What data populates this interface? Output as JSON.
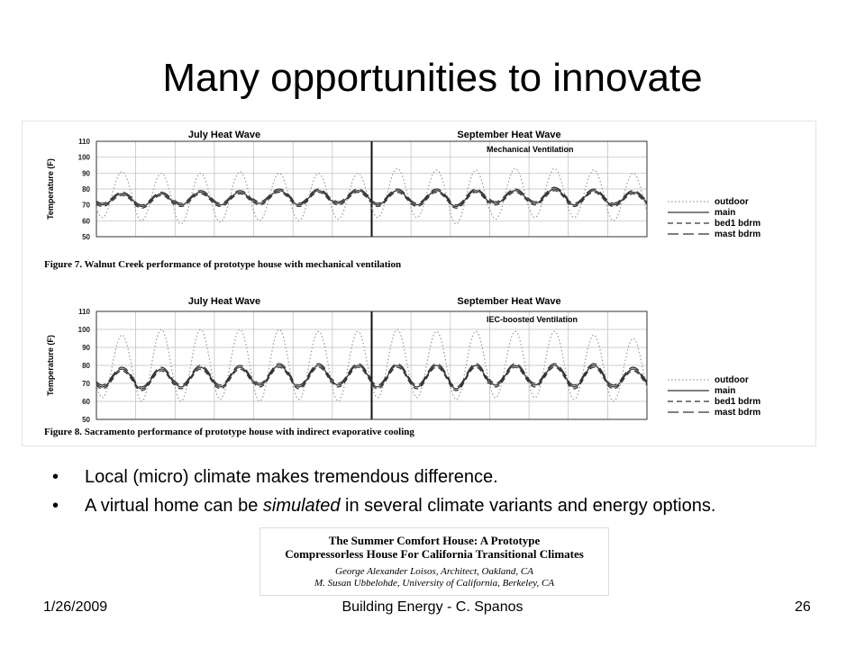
{
  "slide": {
    "title": "Many opportunities to innovate",
    "bullets": [
      {
        "text": "Local (micro) climate makes tremendous difference."
      },
      {
        "before": "A virtual home can be ",
        "emph": "simulated",
        "after": " in several climate variants and energy options."
      }
    ],
    "footer": {
      "date": "1/26/2009",
      "center": "Building Energy - C. Spanos",
      "page": "26"
    },
    "paper": {
      "title_lines": [
        "The Summer Comfort House: A Prototype",
        "Compressorless House For California Transitional Climates"
      ],
      "author_lines": [
        "George Alexander Loisos, Architect, Oakland, CA",
        "M. Susan Ubbelohde, University of California, Berkeley, CA"
      ]
    }
  },
  "chart_data": [
    {
      "type": "line",
      "header_left": "July Heat Wave",
      "header_right": "September Heat Wave",
      "annotation": "Mechanical Ventilation",
      "ylabel": "Temperature (F)",
      "ylim": [
        50,
        110
      ],
      "yticks": [
        50,
        60,
        70,
        80,
        90,
        100,
        110
      ],
      "days": 14,
      "legend_position": "right",
      "caption": "Figure 7.  Walnut Creek performance of prototype house with mechanical ventilation",
      "series": [
        {
          "name": "outdoor",
          "style": "dotted",
          "color": "#9a9a9a",
          "daily_min": [
            62,
            60,
            58,
            59,
            60,
            60,
            61,
            62,
            62,
            58,
            61,
            62,
            62,
            60
          ],
          "daily_max": [
            91,
            90,
            90,
            91,
            90,
            90,
            90,
            93,
            92,
            92,
            93,
            93,
            92,
            90
          ]
        },
        {
          "name": "main",
          "style": "solid",
          "color": "#333333",
          "daily_min": [
            70,
            69,
            70,
            70,
            71,
            70,
            71,
            70,
            70,
            69,
            71,
            71,
            70,
            70
          ],
          "daily_max": [
            77,
            77,
            78,
            78,
            79,
            79,
            79,
            79,
            79,
            79,
            79,
            80,
            79,
            78
          ]
        },
        {
          "name": "bed1 bdrm",
          "style": "dashed",
          "color": "#333333",
          "daily_min": [
            69,
            68,
            69,
            69,
            70,
            69,
            70,
            69,
            69,
            68,
            70,
            70,
            69,
            69
          ],
          "daily_max": [
            76,
            76,
            77,
            77,
            78,
            78,
            78,
            78,
            78,
            78,
            78,
            79,
            78,
            77
          ]
        },
        {
          "name": "mast bdrm",
          "style": "longdash",
          "color": "#333333",
          "daily_min": [
            71,
            70,
            71,
            71,
            72,
            71,
            72,
            71,
            71,
            70,
            72,
            72,
            71,
            71
          ],
          "daily_max": [
            78,
            78,
            79,
            79,
            80,
            80,
            80,
            80,
            80,
            80,
            80,
            81,
            80,
            79
          ]
        }
      ]
    },
    {
      "type": "line",
      "header_left": "July Heat Wave",
      "header_right": "September Heat Wave",
      "annotation": "IEC-boosted Ventilation",
      "ylabel": "Temperature (F)",
      "ylim": [
        50,
        110
      ],
      "yticks": [
        50,
        60,
        70,
        80,
        90,
        100,
        110
      ],
      "days": 14,
      "legend_position": "right",
      "caption": "Figure 8.  Sacramento performance of prototype house with indirect evaporative cooling",
      "series": [
        {
          "name": "outdoor",
          "style": "dotted",
          "color": "#9a9a9a",
          "daily_min": [
            62,
            60,
            60,
            61,
            60,
            61,
            60,
            62,
            62,
            61,
            62,
            62,
            61,
            60
          ],
          "daily_max": [
            97,
            100,
            100,
            100,
            100,
            99,
            99,
            100,
            99,
            99,
            99,
            99,
            97,
            95
          ]
        },
        {
          "name": "main",
          "style": "solid",
          "color": "#333333",
          "daily_min": [
            68,
            67,
            68,
            68,
            69,
            68,
            69,
            68,
            68,
            67,
            69,
            69,
            68,
            68
          ],
          "daily_max": [
            78,
            78,
            79,
            79,
            80,
            80,
            80,
            80,
            80,
            80,
            80,
            80,
            80,
            78
          ]
        },
        {
          "name": "bed1 bdrm",
          "style": "dashed",
          "color": "#333333",
          "daily_min": [
            67,
            66,
            67,
            67,
            68,
            67,
            68,
            67,
            67,
            66,
            68,
            68,
            67,
            67
          ],
          "daily_max": [
            77,
            77,
            78,
            78,
            79,
            79,
            79,
            79,
            79,
            79,
            79,
            79,
            79,
            77
          ]
        },
        {
          "name": "mast bdrm",
          "style": "longdash",
          "color": "#333333",
          "daily_min": [
            69,
            68,
            69,
            69,
            70,
            69,
            70,
            69,
            69,
            68,
            70,
            70,
            69,
            69
          ],
          "daily_max": [
            79,
            79,
            80,
            80,
            81,
            81,
            81,
            81,
            81,
            81,
            81,
            81,
            81,
            79
          ]
        }
      ]
    }
  ]
}
